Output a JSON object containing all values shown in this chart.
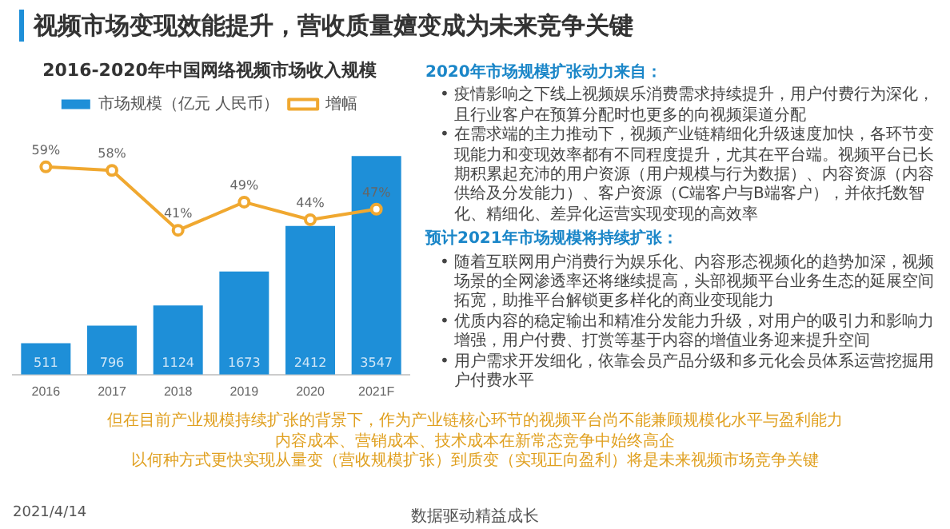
{
  "chart_data": {
    "type": "bar",
    "title": "2016-2020年中国网络视频市场收入规模",
    "categories": [
      "2016",
      "2017",
      "2018",
      "2019",
      "2020",
      "2021F"
    ],
    "series": [
      {
        "name": "市场规模（亿元 人民币）",
        "color": "#1e8fd8",
        "values": [
          511,
          796,
          1124,
          1673,
          2412,
          3547
        ],
        "value_labels": [
          "511",
          "796",
          "1124",
          "1673",
          "2412",
          "3547"
        ]
      },
      {
        "name": "增幅",
        "type": "line",
        "axis": "y2",
        "color": "#f0a830",
        "marker": "circle",
        "values": [
          59,
          58,
          41,
          49,
          44,
          47
        ],
        "value_labels": [
          "59%",
          "58%",
          "41%",
          "49%",
          "44%",
          "47%"
        ]
      }
    ],
    "legend": "top",
    "grid": false,
    "tick_labels": "x",
    "annotations": [
      "视频市场变现效能提升，营收质量嬗变成为未来竞争关键",
      "2020年市场规模扩张动力来自：",
      "• 疫情影响之下线上视频娱乐消费需求持续提升，用户付费行为深化，且行业客户在预算分配时也更多的向视频渠道分配",
      "• 在需求端的主力推动下，视频产业链精细化升级速度加快，各环节变现能力和变现效率都有不同程度提升，尤其在平台端。视频平台已长期积累起充沛的用户资源（用户规模与行为数据）、内容资源（内容供给及分发能力）、客户资源（C端客户与B端客户），并依托数智化、精细化、差异化运营实现变现的高效率",
      "预计2021年市场规模将持续扩张：",
      "• 随着互联网用户消费行为娱乐化、内容形态视频化的趋势加深，视频场景的全网渗透率还将继续提高，头部视频平台业务生态的延展空间拓宽，助推平台解锁更多样化的商业变现能力",
      "• 优质内容的稳定输出和精准分发能力升级，对用户的吸引力和影响力增强，用户付费、打赏等基于内容的增值业务迎来提升空间",
      "• 用户需求开发细化，依靠会员产品分级和多元化会员体系运营挖掘用户付费水平",
      "但在目前产业规模持续扩张的背景下，作为产业链核心环节的视频平台尚不能兼顾规模化水平与盈利能力",
      "内容成本、营销成本、技术成本在新常态竞争中始终高企",
      "以何种方式更快实现从量变（营收规模扩张）到质变（实现正向盈利）将是未来视频市场竞争关键",
      "2021/4/14",
      "数据驱动精益成长"
    ]
  }
}
